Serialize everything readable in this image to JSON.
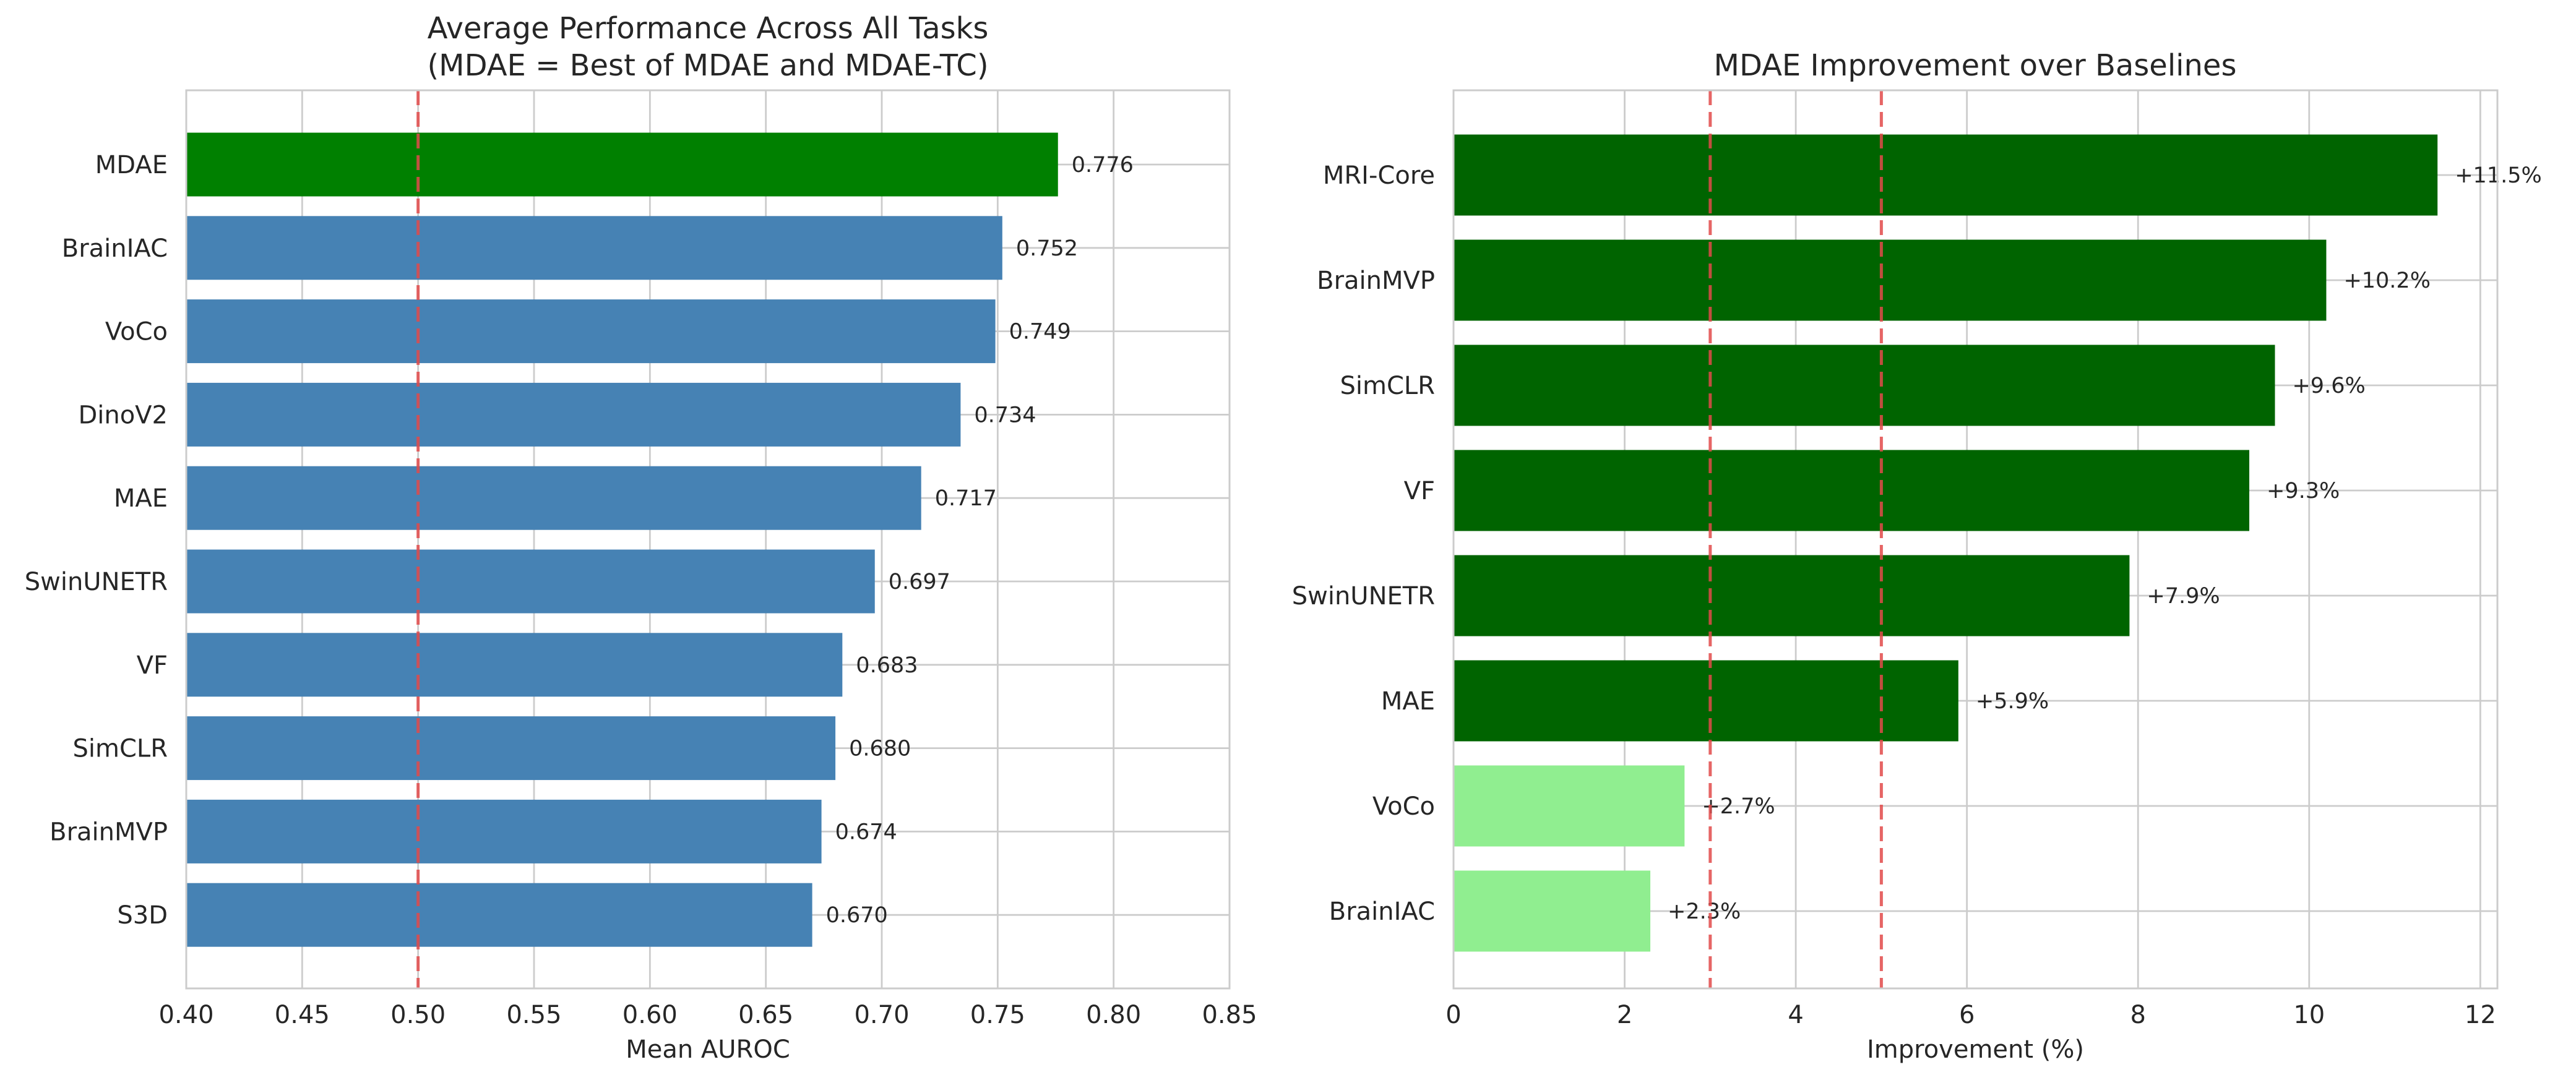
{
  "chart_data": [
    {
      "type": "bar",
      "orientation": "horizontal",
      "title": "Average Performance Across All Tasks\n(MDAE = Best of MDAE and MDAE-TC)",
      "xlabel": "Mean AUROC",
      "ylabel": "",
      "xlim": [
        0.4,
        0.85
      ],
      "xticks": [
        "0.40",
        "0.45",
        "0.50",
        "0.55",
        "0.60",
        "0.65",
        "0.70",
        "0.75",
        "0.80",
        "0.85"
      ],
      "grid": true,
      "reference_lines": [
        0.5
      ],
      "categories": [
        "MDAE",
        "BrainIAC",
        "VoCo",
        "DinoV2",
        "MAE",
        "SwinUNETR",
        "VF",
        "SimCLR",
        "BrainMVP",
        "S3D"
      ],
      "values": [
        0.776,
        0.752,
        0.749,
        0.734,
        0.717,
        0.697,
        0.683,
        0.68,
        0.674,
        0.67
      ],
      "value_labels": [
        "0.776",
        "0.752",
        "0.749",
        "0.734",
        "0.717",
        "0.697",
        "0.683",
        "0.680",
        "0.674",
        "0.670"
      ],
      "colors": [
        "#008000",
        "#4682b4",
        "#4682b4",
        "#4682b4",
        "#4682b4",
        "#4682b4",
        "#4682b4",
        "#4682b4",
        "#4682b4",
        "#4682b4"
      ]
    },
    {
      "type": "bar",
      "orientation": "horizontal",
      "title": "MDAE Improvement over Baselines",
      "xlabel": "Improvement (%)",
      "ylabel": "",
      "xlim": [
        0,
        12.2
      ],
      "xticks": [
        "0",
        "2",
        "4",
        "6",
        "8",
        "10",
        "12"
      ],
      "grid": true,
      "reference_lines": [
        3,
        5
      ],
      "categories": [
        "MRI-Core",
        "BrainMVP",
        "SimCLR",
        "VF",
        "SwinUNETR",
        "MAE",
        "VoCo",
        "BrainIAC"
      ],
      "values": [
        11.5,
        10.2,
        9.6,
        9.3,
        7.9,
        5.9,
        2.7,
        2.3
      ],
      "value_labels": [
        "+11.5%",
        "+10.2%",
        "+9.6%",
        "+9.3%",
        "+7.9%",
        "+5.9%",
        "+2.7%",
        "+2.3%"
      ],
      "colors": [
        "#006400",
        "#006400",
        "#006400",
        "#006400",
        "#006400",
        "#006400",
        "#90ee90",
        "#90ee90"
      ]
    }
  ]
}
